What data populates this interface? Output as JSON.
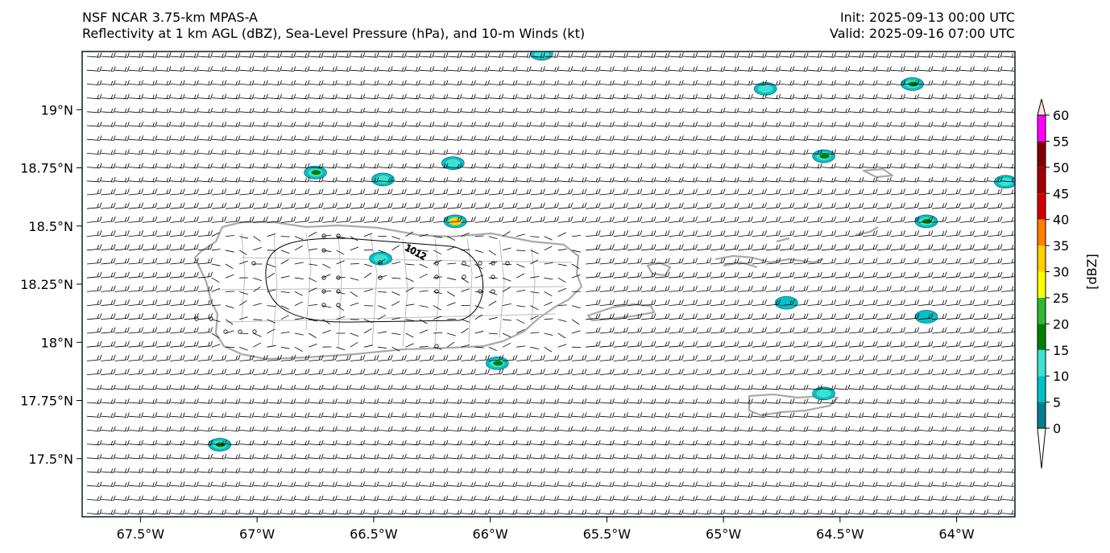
{
  "header": {
    "model": "NSF NCAR 3.75-km MPAS-A",
    "fields": "Reflectivity at 1 km AGL (dBZ), Sea-Level Pressure (hPa), and 10-m Winds (kt)",
    "init": "Init: 2025-09-13 00:00 UTC",
    "valid": "Valid: 2025-09-16 07:00 UTC"
  },
  "map": {
    "lon_range": [
      -67.75,
      -63.75
    ],
    "lat_range": [
      17.25,
      19.25
    ],
    "lon_ticks": [
      {
        "value": -67.5,
        "label": "67.5°W"
      },
      {
        "value": -67.0,
        "label": "67°W"
      },
      {
        "value": -66.5,
        "label": "66.5°W"
      },
      {
        "value": -66.0,
        "label": "66°W"
      },
      {
        "value": -65.5,
        "label": "65.5°W"
      },
      {
        "value": -65.0,
        "label": "65°W"
      },
      {
        "value": -64.5,
        "label": "64.5°W"
      },
      {
        "value": -64.0,
        "label": "64°W"
      }
    ],
    "lat_ticks": [
      {
        "value": 19.0,
        "label": "19°N"
      },
      {
        "value": 18.75,
        "label": "18.75°N"
      },
      {
        "value": 18.5,
        "label": "18.5°N"
      },
      {
        "value": 18.25,
        "label": "18.25°N"
      },
      {
        "value": 18.0,
        "label": "18°N"
      },
      {
        "value": 17.75,
        "label": "17.75°N"
      },
      {
        "value": 17.5,
        "label": "17.5°N"
      }
    ],
    "isobar_label": "1012",
    "coast_color": "#aaaaaa",
    "barb_color": "#000000"
  },
  "colorbar": {
    "label": "[dBZ]",
    "levels": [
      0,
      5,
      10,
      15,
      20,
      25,
      30,
      35,
      40,
      45,
      50,
      55,
      60
    ],
    "colors": [
      "#00808c",
      "#00c0c8",
      "#40e0d0",
      "#008000",
      "#30b830",
      "#ffff00",
      "#ffd000",
      "#ff8000",
      "#d00000",
      "#a00000",
      "#800000",
      "#ff00ff"
    ],
    "extend_top_color": "#ffe4dc",
    "extend_bottom_color": "#ffffff"
  },
  "echoes": [
    {
      "lon": -65.78,
      "lat": 19.24,
      "level": 10
    },
    {
      "lon": -64.82,
      "lat": 19.09,
      "level": 10
    },
    {
      "lon": -64.19,
      "lat": 19.11,
      "level": 20
    },
    {
      "lon": -64.57,
      "lat": 18.8,
      "level": 20
    },
    {
      "lon": -66.75,
      "lat": 18.73,
      "level": 20
    },
    {
      "lon": -66.46,
      "lat": 18.7,
      "level": 10
    },
    {
      "lon": -66.16,
      "lat": 18.77,
      "level": 10
    },
    {
      "lon": -66.15,
      "lat": 18.52,
      "level": 30
    },
    {
      "lon": -66.47,
      "lat": 18.36,
      "level": 10
    },
    {
      "lon": -64.13,
      "lat": 18.52,
      "level": 20
    },
    {
      "lon": -63.79,
      "lat": 18.69,
      "level": 10
    },
    {
      "lon": -64.73,
      "lat": 18.17,
      "level": 5
    },
    {
      "lon": -64.13,
      "lat": 18.11,
      "level": 5
    },
    {
      "lon": -65.97,
      "lat": 17.91,
      "level": 20
    },
    {
      "lon": -64.57,
      "lat": 17.78,
      "level": 10
    },
    {
      "lon": -67.16,
      "lat": 17.56,
      "level": 20
    }
  ]
}
